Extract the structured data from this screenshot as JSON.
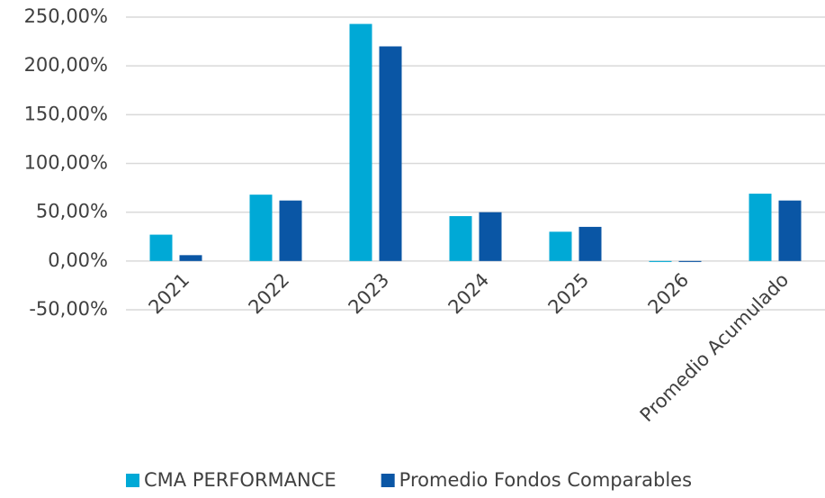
{
  "chart_data": {
    "type": "bar",
    "categories": [
      "2021",
      "2022",
      "2023",
      "2024",
      "2025",
      "2026",
      "Promedio Acumulado"
    ],
    "series": [
      {
        "name": "CMA PERFORMANCE",
        "color": "#00a9d6",
        "values": [
          27,
          68,
          243,
          46,
          30,
          -1,
          69
        ]
      },
      {
        "name": "Promedio Fondos Comparables",
        "color": "#0a56a5",
        "values": [
          6,
          62,
          220,
          50,
          35,
          -1,
          62
        ]
      }
    ],
    "ylim": [
      -50,
      250
    ],
    "yticks": [
      {
        "value": -50,
        "label": "-50,00%"
      },
      {
        "value": 0,
        "label": "0,00%"
      },
      {
        "value": 50,
        "label": "50,00%"
      },
      {
        "value": 100,
        "label": "100,00%"
      },
      {
        "value": 150,
        "label": "150,00%"
      },
      {
        "value": 200,
        "label": "200,00%"
      },
      {
        "value": 250,
        "label": "250,00%"
      }
    ],
    "grid": true
  }
}
